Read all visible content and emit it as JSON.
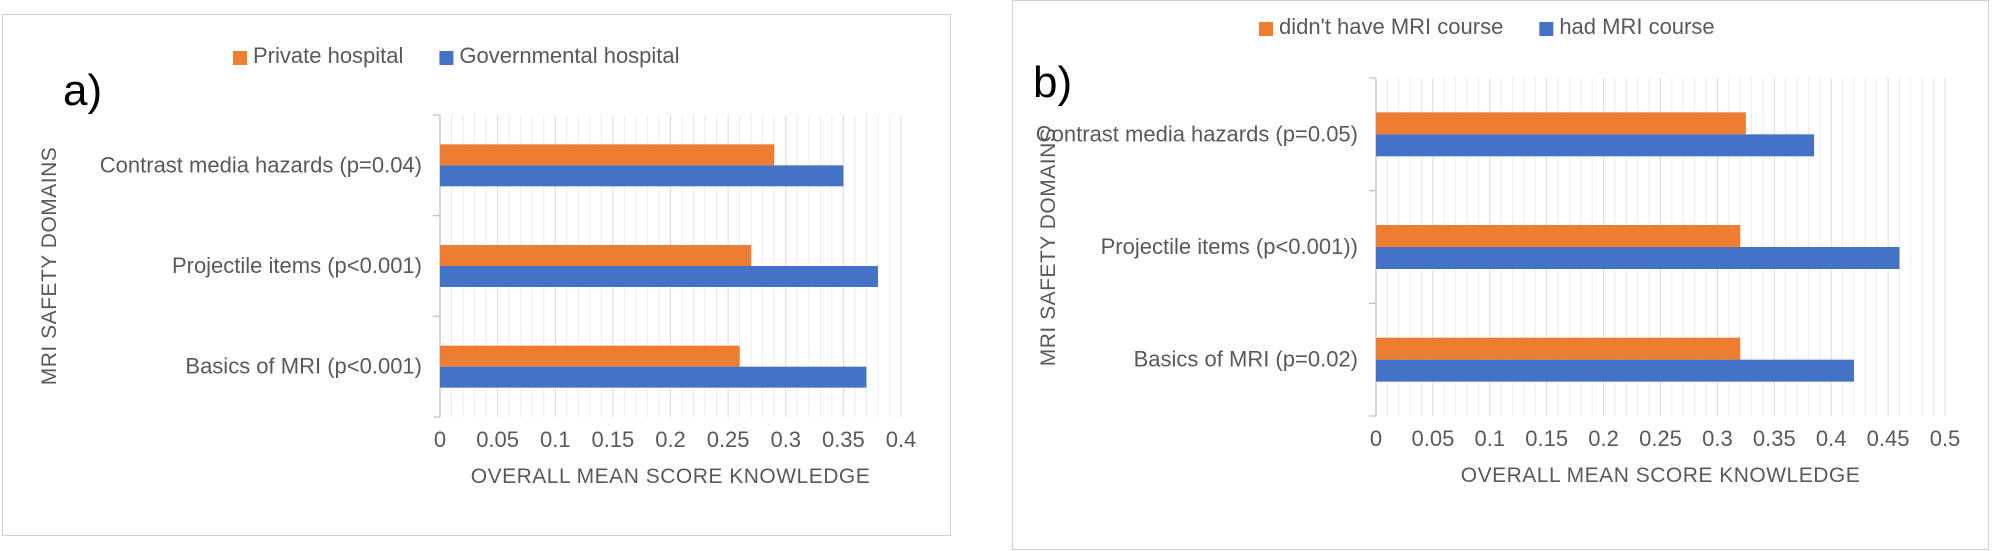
{
  "chart_data": [
    {
      "panel_label": "a)",
      "type": "bar",
      "orientation": "horizontal",
      "categories": [
        "Contrast media hazards (p=0.04)",
        "Projectile items (p<0.001)",
        "Basics of MRI (p<0.001)"
      ],
      "series": [
        {
          "name": "Private hospital",
          "color": "#ED7D31",
          "values": [
            0.29,
            0.27,
            0.26
          ]
        },
        {
          "name": "Governmental hospital",
          "color": "#4472C4",
          "values": [
            0.35,
            0.38,
            0.37
          ]
        }
      ],
      "xlabel": "OVERALL MEAN SCORE KNOWLEDGE",
      "ylabel": "MRI SAFETY DOMAINS",
      "xlim": [
        0,
        0.4
      ],
      "xticks": [
        "0",
        "0.05",
        "0.1",
        "0.15",
        "0.2",
        "0.25",
        "0.3",
        "0.35",
        "0.4"
      ],
      "legend_position": "top",
      "grid": "vertical minor"
    },
    {
      "panel_label": "b)",
      "type": "bar",
      "orientation": "horizontal",
      "categories": [
        "Contrast media hazards (p=0.05)",
        "Projectile items  (p<0.001))",
        "Basics of MRI (p=0.02)"
      ],
      "series": [
        {
          "name": "didn't have MRI course",
          "color": "#ED7D31",
          "values": [
            0.325,
            0.32,
            0.32
          ]
        },
        {
          "name": "had MRI course",
          "color": "#4472C4",
          "values": [
            0.385,
            0.46,
            0.42
          ]
        }
      ],
      "xlabel": "OVERALL MEAN SCORE KNOWLEDGE",
      "ylabel": "MRI SAFETY DOMAINS",
      "xlim": [
        0,
        0.5
      ],
      "xticks": [
        "0",
        "0.05",
        "0.1",
        "0.15",
        "0.2",
        "0.25",
        "0.3",
        "0.35",
        "0.4",
        "0.45",
        "0.5"
      ],
      "legend_position": "top",
      "grid": "vertical minor"
    }
  ]
}
